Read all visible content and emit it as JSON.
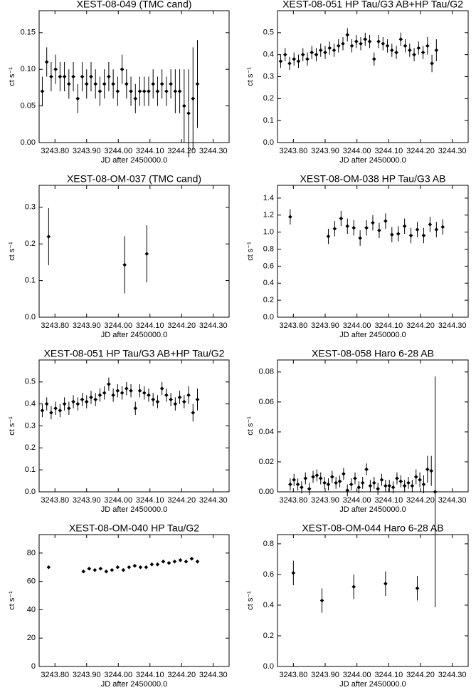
{
  "chart_data": [
    {
      "type": "scatter",
      "title": "XEST-08-049 (TMC cand)",
      "xlabel": "JD after 2450000.0",
      "ylabel": "ct s⁻¹",
      "xlim": [
        3243.75,
        3244.35
      ],
      "ylim": [
        0,
        0.18
      ],
      "xticks": [
        {
          "value": 3243.8,
          "label": "3243.80"
        },
        {
          "value": 3243.9,
          "label": "3243.90"
        },
        {
          "value": 3244.0,
          "label": "3244.00"
        },
        {
          "value": 3244.1,
          "label": "3244.10"
        },
        {
          "value": 3244.2,
          "label": "3244.20"
        },
        {
          "value": 3244.3,
          "label": "3244.30"
        }
      ],
      "yticks": [
        {
          "value": 0,
          "label": "0.00"
        },
        0.05,
        {
          "value": 0.1,
          "label": "0.10"
        },
        0.15
      ],
      "x": [
        3243.76,
        3243.774,
        3243.788,
        3243.802,
        3243.816,
        3243.83,
        3243.844,
        3243.858,
        3243.872,
        3243.886,
        3243.9,
        3243.914,
        3243.928,
        3243.942,
        3243.956,
        3243.97,
        3243.984,
        3243.998,
        3244.012,
        3244.026,
        3244.04,
        3244.054,
        3244.068,
        3244.082,
        3244.096,
        3244.11,
        3244.124,
        3244.138,
        3244.152,
        3244.166,
        3244.18,
        3244.194,
        3244.208,
        3244.222,
        3244.236,
        3244.25
      ],
      "values": [
        0.07,
        0.11,
        0.09,
        0.1,
        0.09,
        0.09,
        0.08,
        0.09,
        0.06,
        0.09,
        0.08,
        0.09,
        0.08,
        0.07,
        0.08,
        0.09,
        0.08,
        0.07,
        0.1,
        0.08,
        0.07,
        0.06,
        0.07,
        0.07,
        0.07,
        0.08,
        0.07,
        0.08,
        0.07,
        0.08,
        0.07,
        0.07,
        0.05,
        0.04,
        0.06,
        0.08
      ],
      "errors": [
        0.02,
        0.02,
        0.02,
        0.02,
        0.02,
        0.02,
        0.02,
        0.02,
        0.02,
        0.02,
        0.02,
        0.02,
        0.02,
        0.02,
        0.02,
        0.02,
        0.02,
        0.02,
        0.02,
        0.02,
        0.02,
        0.02,
        0.02,
        0.02,
        0.02,
        0.02,
        0.02,
        0.02,
        0.02,
        0.02,
        0.03,
        0.03,
        0.05,
        0.06,
        0.07,
        0.06
      ]
    },
    {
      "type": "scatter",
      "title": "XEST-08-051 HP Tau/G3 AB+HP Tau/G2",
      "xlabel": "JD after 2450000.0",
      "ylabel": "ct s⁻¹",
      "xlim": [
        3243.75,
        3244.35
      ],
      "ylim": [
        0,
        0.6
      ],
      "xticks": [
        {
          "value": 3243.8,
          "label": "3243.80"
        },
        {
          "value": 3243.9,
          "label": "3243.90"
        },
        {
          "value": 3244.0,
          "label": "3244.00"
        },
        {
          "value": 3244.1,
          "label": "3244.10"
        },
        {
          "value": 3244.2,
          "label": "3244.20"
        },
        {
          "value": 3244.3,
          "label": "3244.30"
        }
      ],
      "yticks": [
        {
          "value": 0,
          "label": "0.0"
        },
        0.1,
        0.2,
        0.3,
        0.4,
        0.5
      ],
      "x": [
        3243.76,
        3243.774,
        3243.788,
        3243.802,
        3243.816,
        3243.83,
        3243.844,
        3243.858,
        3243.872,
        3243.886,
        3243.9,
        3243.914,
        3243.928,
        3243.942,
        3243.956,
        3243.97,
        3243.984,
        3243.998,
        3244.012,
        3244.026,
        3244.04,
        3244.054,
        3244.068,
        3244.082,
        3244.096,
        3244.11,
        3244.124,
        3244.138,
        3244.152,
        3244.166,
        3244.18,
        3244.194,
        3244.208,
        3244.222,
        3244.236,
        3244.25
      ],
      "values": [
        0.37,
        0.4,
        0.36,
        0.38,
        0.37,
        0.4,
        0.38,
        0.41,
        0.4,
        0.42,
        0.41,
        0.43,
        0.42,
        0.44,
        0.45,
        0.49,
        0.44,
        0.46,
        0.45,
        0.47,
        0.46,
        0.38,
        0.46,
        0.45,
        0.44,
        0.42,
        0.41,
        0.47,
        0.44,
        0.42,
        0.4,
        0.43,
        0.41,
        0.44,
        0.36,
        0.42
      ],
      "errors": [
        0.03,
        0.03,
        0.03,
        0.03,
        0.03,
        0.03,
        0.03,
        0.03,
        0.03,
        0.03,
        0.03,
        0.03,
        0.03,
        0.03,
        0.03,
        0.03,
        0.03,
        0.03,
        0.03,
        0.03,
        0.03,
        0.03,
        0.03,
        0.03,
        0.03,
        0.03,
        0.03,
        0.03,
        0.03,
        0.03,
        0.03,
        0.03,
        0.03,
        0.04,
        0.04,
        0.05
      ]
    },
    {
      "type": "scatter",
      "title": "XEST-08-OM-037 (TMC cand)",
      "xlabel": "JD after 2450000.0",
      "ylabel": "ct s⁻¹",
      "xlim": [
        3243.75,
        3244.35
      ],
      "ylim": [
        0,
        0.36
      ],
      "xticks": [
        {
          "value": 3243.8,
          "label": "3243.80"
        },
        {
          "value": 3243.9,
          "label": "3243.90"
        },
        {
          "value": 3244.0,
          "label": "3244.00"
        },
        {
          "value": 3244.1,
          "label": "3244.10"
        },
        {
          "value": 3244.2,
          "label": "3244.20"
        },
        {
          "value": 3244.3,
          "label": "3244.30"
        }
      ],
      "yticks": [
        {
          "value": 0,
          "label": "0.0"
        },
        0.1,
        0.2,
        0.3
      ],
      "x": [
        3243.78,
        3244.02,
        3244.09
      ],
      "values": [
        0.22,
        0.143,
        0.173
      ],
      "errors": [
        0.078,
        0.078,
        0.078
      ]
    },
    {
      "type": "scatter",
      "title": "XEST-08-OM-038 HP Tau/G3 AB",
      "xlabel": "JD after 2450000.0",
      "ylabel": "ct s⁻¹",
      "xlim": [
        3243.75,
        3244.35
      ],
      "ylim": [
        0,
        1.55
      ],
      "xticks": [
        {
          "value": 3243.8,
          "label": "3243.80"
        },
        {
          "value": 3243.9,
          "label": "3243.90"
        },
        {
          "value": 3244.0,
          "label": "3244.00"
        },
        {
          "value": 3244.1,
          "label": "3244.10"
        },
        {
          "value": 3244.2,
          "label": "3244.20"
        },
        {
          "value": 3244.3,
          "label": "3244.30"
        }
      ],
      "yticks": [
        {
          "value": 0,
          "label": "0.0"
        },
        0.2,
        0.4,
        0.6,
        0.8,
        {
          "value": 1,
          "label": "1.0"
        },
        1.2,
        1.4
      ],
      "x": [
        3243.79,
        3243.91,
        3243.93,
        3243.95,
        3243.97,
        3243.99,
        3244.01,
        3244.03,
        3244.05,
        3244.07,
        3244.09,
        3244.11,
        3244.13,
        3244.15,
        3244.17,
        3244.19,
        3244.21,
        3244.23,
        3244.25,
        3244.27
      ],
      "values": [
        1.18,
        0.95,
        1.04,
        1.16,
        1.07,
        1.05,
        0.93,
        1.05,
        1.11,
        1.02,
        1.13,
        0.97,
        0.98,
        1.07,
        0.96,
        1.03,
        0.96,
        1.09,
        1.03,
        1.06
      ],
      "errors": [
        0.09,
        0.09,
        0.09,
        0.09,
        0.09,
        0.09,
        0.09,
        0.09,
        0.09,
        0.09,
        0.09,
        0.09,
        0.09,
        0.09,
        0.09,
        0.09,
        0.09,
        0.09,
        0.09,
        0.09
      ]
    },
    {
      "type": "scatter",
      "title": "XEST-08-051 HP Tau/G3 AB+HP Tau/G2",
      "xlabel": "JD after 2450000.0",
      "ylabel": "ct s⁻¹",
      "xlim": [
        3243.75,
        3244.35
      ],
      "ylim": [
        0,
        0.6
      ],
      "xticks": [
        {
          "value": 3243.8,
          "label": "3243.80"
        },
        {
          "value": 3243.9,
          "label": "3243.90"
        },
        {
          "value": 3244.0,
          "label": "3244.00"
        },
        {
          "value": 3244.1,
          "label": "3244.10"
        },
        {
          "value": 3244.2,
          "label": "3244.20"
        },
        {
          "value": 3244.3,
          "label": "3244.30"
        }
      ],
      "yticks": [
        {
          "value": 0,
          "label": "0.0"
        },
        0.1,
        0.2,
        0.3,
        0.4,
        0.5
      ],
      "x": [
        3243.76,
        3243.774,
        3243.788,
        3243.802,
        3243.816,
        3243.83,
        3243.844,
        3243.858,
        3243.872,
        3243.886,
        3243.9,
        3243.914,
        3243.928,
        3243.942,
        3243.956,
        3243.97,
        3243.984,
        3243.998,
        3244.012,
        3244.026,
        3244.04,
        3244.054,
        3244.068,
        3244.082,
        3244.096,
        3244.11,
        3244.124,
        3244.138,
        3244.152,
        3244.166,
        3244.18,
        3244.194,
        3244.208,
        3244.222,
        3244.236,
        3244.25
      ],
      "values": [
        0.37,
        0.4,
        0.36,
        0.38,
        0.37,
        0.4,
        0.38,
        0.41,
        0.4,
        0.42,
        0.41,
        0.43,
        0.42,
        0.44,
        0.45,
        0.49,
        0.44,
        0.46,
        0.45,
        0.47,
        0.46,
        0.38,
        0.46,
        0.45,
        0.44,
        0.42,
        0.41,
        0.47,
        0.44,
        0.42,
        0.4,
        0.43,
        0.41,
        0.44,
        0.36,
        0.42
      ],
      "errors": [
        0.03,
        0.03,
        0.03,
        0.03,
        0.03,
        0.03,
        0.03,
        0.03,
        0.03,
        0.03,
        0.03,
        0.03,
        0.03,
        0.03,
        0.03,
        0.03,
        0.03,
        0.03,
        0.03,
        0.03,
        0.03,
        0.03,
        0.03,
        0.03,
        0.03,
        0.03,
        0.03,
        0.03,
        0.03,
        0.03,
        0.03,
        0.03,
        0.03,
        0.04,
        0.04,
        0.05
      ]
    },
    {
      "type": "scatter",
      "title": "XEST-08-058 Haro 6-28 AB",
      "xlabel": "JD after 2450000.0",
      "ylabel": "ct s⁻¹",
      "xlim": [
        3243.75,
        3244.35
      ],
      "ylim": [
        0,
        0.088
      ],
      "xticks": [
        {
          "value": 3243.8,
          "label": "3243.80"
        },
        {
          "value": 3243.9,
          "label": "3243.90"
        },
        {
          "value": 3244.0,
          "label": "3244.00"
        },
        {
          "value": 3244.1,
          "label": "3244.10"
        },
        {
          "value": 3244.2,
          "label": "3244.20"
        },
        {
          "value": 3244.3,
          "label": "3244.30"
        }
      ],
      "yticks": [
        {
          "value": 0,
          "label": "0.00"
        },
        0.02,
        0.04,
        0.06,
        0.08
      ],
      "x": [
        3243.79,
        3243.802,
        3243.814,
        3243.826,
        3243.838,
        3243.85,
        3243.862,
        3243.874,
        3243.886,
        3243.898,
        3243.91,
        3243.922,
        3243.934,
        3243.946,
        3243.958,
        3243.97,
        3243.982,
        3243.994,
        3244.006,
        3244.018,
        3244.03,
        3244.042,
        3244.054,
        3244.066,
        3244.078,
        3244.09,
        3244.102,
        3244.114,
        3244.126,
        3244.138,
        3244.15,
        3244.162,
        3244.174,
        3244.186,
        3244.198,
        3244.21,
        3244.222,
        3244.234,
        3244.246
      ],
      "values": [
        0.005,
        0.008,
        0.005,
        0.003,
        0.009,
        0.002,
        0.01,
        0.011,
        0.009,
        0.006,
        0.005,
        0.01,
        0.006,
        0.007,
        0.012,
        0.001,
        0.005,
        0.009,
        0.003,
        0.006,
        0.015,
        0.004,
        0.006,
        0.002,
        0.008,
        0.004,
        0.004,
        0.003,
        0.009,
        0.007,
        0.004,
        0.006,
        0.004,
        0.01,
        0.008,
        0.005,
        0.015,
        0.014,
        0.0
      ],
      "errors": [
        0.004,
        0.004,
        0.004,
        0.004,
        0.004,
        0.004,
        0.004,
        0.004,
        0.004,
        0.004,
        0.004,
        0.004,
        0.004,
        0.004,
        0.004,
        0.004,
        0.004,
        0.004,
        0.004,
        0.004,
        0.004,
        0.004,
        0.004,
        0.004,
        0.004,
        0.004,
        0.004,
        0.004,
        0.004,
        0.004,
        0.004,
        0.004,
        0.004,
        0.005,
        0.005,
        0.006,
        0.009,
        0.01,
        0.077
      ]
    },
    {
      "type": "scatter",
      "title": "XEST-08-OM-040 HP Tau/G2",
      "xlabel": "JD after 2450000.0",
      "ylabel": "ct s⁻¹",
      "xlim": [
        3243.75,
        3244.35
      ],
      "ylim": [
        0,
        93
      ],
      "xticks": [
        {
          "value": 3243.8,
          "label": "3243.80"
        },
        {
          "value": 3243.9,
          "label": "3243.90"
        },
        {
          "value": 3244.0,
          "label": "3244.00"
        },
        {
          "value": 3244.1,
          "label": "3244.10"
        },
        {
          "value": 3244.2,
          "label": "3244.20"
        },
        {
          "value": 3244.3,
          "label": "3244.30"
        }
      ],
      "yticks": [
        0,
        20,
        40,
        60,
        80
      ],
      "x": [
        3243.78,
        3243.89,
        3243.908,
        3243.926,
        3243.944,
        3243.962,
        3243.98,
        3243.998,
        3244.016,
        3244.034,
        3244.052,
        3244.07,
        3244.088,
        3244.106,
        3244.124,
        3244.142,
        3244.16,
        3244.178,
        3244.196,
        3244.214,
        3244.232,
        3244.25
      ],
      "values": [
        70,
        67,
        69,
        68,
        69,
        67,
        68,
        70,
        68,
        70,
        71,
        70,
        70,
        72,
        72,
        74,
        73,
        74,
        75,
        74,
        76,
        74
      ],
      "errors": [
        1,
        1,
        1,
        1,
        1,
        1,
        1,
        1,
        1,
        1,
        1,
        1,
        1,
        1,
        1,
        1,
        1,
        1,
        1,
        1,
        1,
        1
      ]
    },
    {
      "type": "scatter",
      "title": "XEST-08-OM-044 Haro 6-28 AB",
      "xlabel": "JD after 2450000.0",
      "ylabel": "ct s⁻¹",
      "xlim": [
        3243.75,
        3244.35
      ],
      "ylim": [
        0,
        0.86
      ],
      "xticks": [
        {
          "value": 3243.8,
          "label": "3243.80"
        },
        {
          "value": 3243.9,
          "label": "3243.90"
        },
        {
          "value": 3244.0,
          "label": "3244.00"
        },
        {
          "value": 3244.1,
          "label": "3244.10"
        },
        {
          "value": 3244.2,
          "label": "3244.20"
        },
        {
          "value": 3244.3,
          "label": "3244.30"
        }
      ],
      "yticks": [
        {
          "value": 0,
          "label": "0.0"
        },
        0.2,
        0.4,
        0.6,
        0.8
      ],
      "x": [
        3243.8,
        3243.89,
        3243.99,
        3244.09,
        3244.19
      ],
      "values": [
        0.61,
        0.43,
        0.52,
        0.54,
        0.51
      ],
      "errors": [
        0.08,
        0.08,
        0.08,
        0.08,
        0.08
      ]
    }
  ]
}
